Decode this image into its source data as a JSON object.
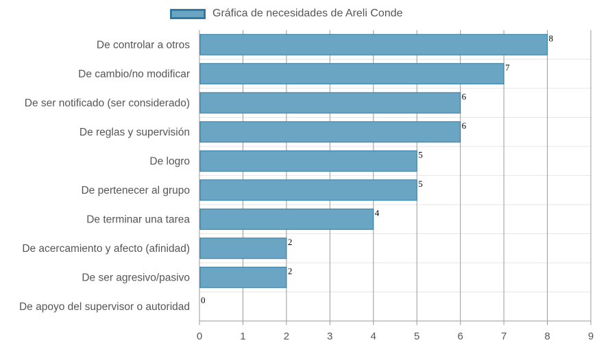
{
  "chart_data": {
    "type": "bar",
    "orientation": "horizontal",
    "legend": {
      "label": "Gráfica de necesidades de Areli Conde",
      "position": "top"
    },
    "categories": [
      "De controlar a otros",
      "De cambio/no modificar",
      "De ser notificado (ser considerado)",
      "De reglas y supervisión",
      "De logro",
      "De pertenecer al grupo",
      "De terminar una tarea",
      "De acercamiento y afecto (afinidad)",
      "De ser agresivo/pasivo",
      "De apoyo del supervisor o autoridad"
    ],
    "values": [
      8,
      7,
      6,
      6,
      5,
      5,
      4,
      2,
      2,
      0
    ],
    "xlim": [
      0,
      9
    ],
    "xticks": [
      "0",
      "1",
      "2",
      "3",
      "4",
      "5",
      "6",
      "7",
      "8",
      "9"
    ],
    "grid": true,
    "colors": {
      "bar_fill": "#6aa6c4",
      "bar_edge": "#2e7aa0",
      "grid": "#999999",
      "label": "#555555"
    }
  }
}
